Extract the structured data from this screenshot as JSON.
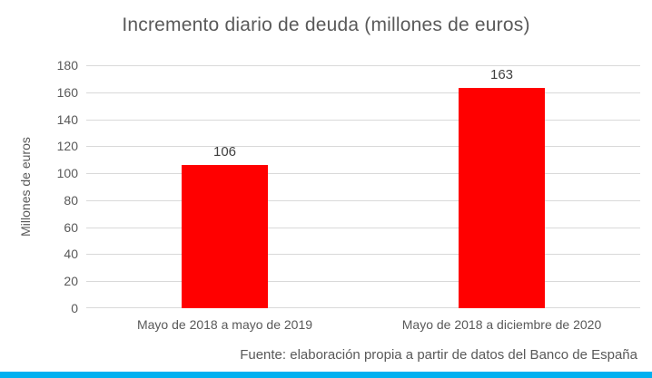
{
  "chart_data": {
    "type": "bar",
    "title": "Incremento diario de deuda (millones de euros)",
    "categories": [
      "Mayo de 2018 a mayo de 2019",
      "Mayo de 2018 a diciembre de 2020"
    ],
    "values": [
      106,
      163
    ],
    "ylabel": "Millones de euros",
    "xlabel": "",
    "ylim": [
      0,
      180
    ],
    "ytick_step": 20,
    "grid": true,
    "legend": false,
    "bar_color": "#ff0000",
    "text_color": "#595959",
    "value_label_color": "#404040",
    "gridline_color": "#d9d9d9",
    "accent_strip_color": "#00b0f0",
    "source": "Fuente: elaboración propia a partir de datos del Banco de España"
  }
}
